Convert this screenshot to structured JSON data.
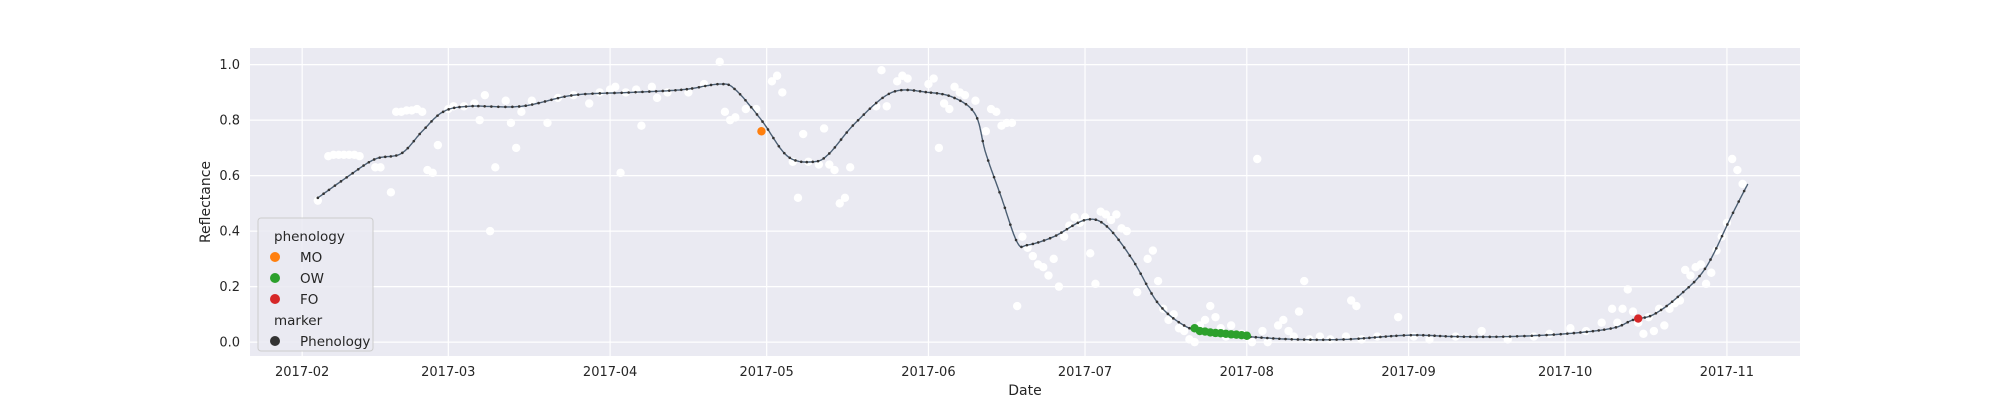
{
  "chart_data": {
    "type": "scatter",
    "title": "",
    "xlabel": "Date",
    "ylabel": "Reflectance",
    "xlim": [
      "2017-01-22",
      "2017-11-15"
    ],
    "ylim": [
      -0.05,
      1.06
    ],
    "grid": true,
    "x_ticks": [
      "2017-02-01",
      "2017-03-01",
      "2017-04-01",
      "2017-05-01",
      "2017-06-01",
      "2017-07-01",
      "2017-08-01",
      "2017-09-01",
      "2017-10-01",
      "2017-11-01"
    ],
    "x_tick_labels": [
      "2017-02",
      "2017-03",
      "2017-04",
      "2017-05",
      "2017-06",
      "2017-07",
      "2017-08",
      "2017-09",
      "2017-10",
      "2017-11"
    ],
    "y_ticks": [
      0.0,
      0.2,
      0.4,
      0.6,
      0.8,
      1.0
    ],
    "y_tick_labels": [
      "0.0",
      "0.2",
      "0.4",
      "0.6",
      "0.8",
      "1.0"
    ],
    "colors": {
      "background": "#eaeaf2",
      "grid": "#ffffff",
      "observations": "#ffffff",
      "curve": "#4c5f73",
      "MO": "#ff7f0e",
      "OW": "#2ca02c",
      "FO": "#d62728",
      "Phenology": "#333333"
    },
    "legend": {
      "position": "lower-left",
      "title_hue": "phenology",
      "hue_entries": [
        "MO",
        "OW",
        "FO"
      ],
      "title_marker": "marker",
      "marker_entries": [
        "Phenology"
      ]
    },
    "observations": [
      [
        "2017-02-04",
        0.51
      ],
      [
        "2017-02-06",
        0.67
      ],
      [
        "2017-02-07",
        0.675
      ],
      [
        "2017-02-08",
        0.675
      ],
      [
        "2017-02-09",
        0.675
      ],
      [
        "2017-02-10",
        0.675
      ],
      [
        "2017-02-11",
        0.675
      ],
      [
        "2017-02-12",
        0.67
      ],
      [
        "2017-02-15",
        0.63
      ],
      [
        "2017-02-16",
        0.63
      ],
      [
        "2017-02-18",
        0.54
      ],
      [
        "2017-02-19",
        0.83
      ],
      [
        "2017-02-20",
        0.83
      ],
      [
        "2017-02-21",
        0.835
      ],
      [
        "2017-02-22",
        0.835
      ],
      [
        "2017-02-23",
        0.84
      ],
      [
        "2017-02-24",
        0.83
      ],
      [
        "2017-02-25",
        0.62
      ],
      [
        "2017-02-26",
        0.61
      ],
      [
        "2017-02-27",
        0.71
      ],
      [
        "2017-03-01",
        0.84
      ],
      [
        "2017-03-02",
        0.85
      ],
      [
        "2017-03-04",
        0.85
      ],
      [
        "2017-03-06",
        0.86
      ],
      [
        "2017-03-07",
        0.8
      ],
      [
        "2017-03-08",
        0.89
      ],
      [
        "2017-03-09",
        0.4
      ],
      [
        "2017-03-10",
        0.63
      ],
      [
        "2017-03-12",
        0.87
      ],
      [
        "2017-03-13",
        0.79
      ],
      [
        "2017-03-14",
        0.7
      ],
      [
        "2017-03-15",
        0.83
      ],
      [
        "2017-03-17",
        0.87
      ],
      [
        "2017-03-20",
        0.79
      ],
      [
        "2017-03-22",
        0.88
      ],
      [
        "2017-03-25",
        0.89
      ],
      [
        "2017-03-28",
        0.86
      ],
      [
        "2017-03-30",
        0.9
      ],
      [
        "2017-04-01",
        0.91
      ],
      [
        "2017-04-02",
        0.92
      ],
      [
        "2017-04-03",
        0.61
      ],
      [
        "2017-04-04",
        0.9
      ],
      [
        "2017-04-06",
        0.91
      ],
      [
        "2017-04-07",
        0.78
      ],
      [
        "2017-04-09",
        0.92
      ],
      [
        "2017-04-10",
        0.88
      ],
      [
        "2017-04-12",
        0.9
      ],
      [
        "2017-04-16",
        0.9
      ],
      [
        "2017-04-19",
        0.93
      ],
      [
        "2017-04-22",
        1.01
      ],
      [
        "2017-04-23",
        0.83
      ],
      [
        "2017-04-24",
        0.8
      ],
      [
        "2017-04-25",
        0.81
      ],
      [
        "2017-04-27",
        0.84
      ],
      [
        "2017-04-29",
        0.84
      ],
      [
        "2017-05-02",
        0.94
      ],
      [
        "2017-05-03",
        0.96
      ],
      [
        "2017-05-04",
        0.9
      ],
      [
        "2017-05-06",
        0.65
      ],
      [
        "2017-05-07",
        0.52
      ],
      [
        "2017-05-08",
        0.75
      ],
      [
        "2017-05-09",
        0.65
      ],
      [
        "2017-05-11",
        0.64
      ],
      [
        "2017-05-12",
        0.77
      ],
      [
        "2017-05-13",
        0.64
      ],
      [
        "2017-05-14",
        0.62
      ],
      [
        "2017-05-15",
        0.5
      ],
      [
        "2017-05-16",
        0.52
      ],
      [
        "2017-05-17",
        0.63
      ],
      [
        "2017-05-22",
        0.85
      ],
      [
        "2017-05-23",
        0.98
      ],
      [
        "2017-05-24",
        0.85
      ],
      [
        "2017-05-26",
        0.94
      ],
      [
        "2017-05-27",
        0.96
      ],
      [
        "2017-05-28",
        0.95
      ],
      [
        "2017-06-01",
        0.93
      ],
      [
        "2017-06-02",
        0.95
      ],
      [
        "2017-06-03",
        0.7
      ],
      [
        "2017-06-04",
        0.86
      ],
      [
        "2017-06-05",
        0.84
      ],
      [
        "2017-06-06",
        0.92
      ],
      [
        "2017-06-07",
        0.9
      ],
      [
        "2017-06-08",
        0.89
      ],
      [
        "2017-06-10",
        0.87
      ],
      [
        "2017-06-12",
        0.76
      ],
      [
        "2017-06-13",
        0.84
      ],
      [
        "2017-06-14",
        0.83
      ],
      [
        "2017-06-15",
        0.78
      ],
      [
        "2017-06-16",
        0.79
      ],
      [
        "2017-06-17",
        0.79
      ],
      [
        "2017-06-18",
        0.13
      ],
      [
        "2017-06-19",
        0.38
      ],
      [
        "2017-06-20",
        0.34
      ],
      [
        "2017-06-21",
        0.31
      ],
      [
        "2017-06-22",
        0.28
      ],
      [
        "2017-06-23",
        0.27
      ],
      [
        "2017-06-24",
        0.24
      ],
      [
        "2017-06-25",
        0.3
      ],
      [
        "2017-06-26",
        0.2
      ],
      [
        "2017-06-27",
        0.38
      ],
      [
        "2017-06-28",
        0.42
      ],
      [
        "2017-06-29",
        0.45
      ],
      [
        "2017-06-30",
        0.43
      ],
      [
        "2017-07-01",
        0.45
      ],
      [
        "2017-07-02",
        0.32
      ],
      [
        "2017-07-03",
        0.21
      ],
      [
        "2017-07-04",
        0.47
      ],
      [
        "2017-07-05",
        0.46
      ],
      [
        "2017-07-06",
        0.44
      ],
      [
        "2017-07-07",
        0.46
      ],
      [
        "2017-07-08",
        0.41
      ],
      [
        "2017-07-09",
        0.4
      ],
      [
        "2017-07-11",
        0.18
      ],
      [
        "2017-07-13",
        0.3
      ],
      [
        "2017-07-14",
        0.33
      ],
      [
        "2017-07-15",
        0.22
      ],
      [
        "2017-07-16",
        0.12
      ],
      [
        "2017-07-17",
        0.08
      ],
      [
        "2017-07-18",
        0.1
      ],
      [
        "2017-07-19",
        0.05
      ],
      [
        "2017-07-20",
        0.04
      ],
      [
        "2017-07-21",
        0.01
      ],
      [
        "2017-07-22",
        0.0
      ],
      [
        "2017-07-23",
        0.06
      ],
      [
        "2017-07-24",
        0.08
      ],
      [
        "2017-07-25",
        0.13
      ],
      [
        "2017-07-26",
        0.09
      ],
      [
        "2017-07-27",
        0.05
      ],
      [
        "2017-07-28",
        0.02
      ],
      [
        "2017-07-29",
        0.06
      ],
      [
        "2017-07-31",
        0.03
      ],
      [
        "2017-08-01",
        0.02
      ],
      [
        "2017-08-02",
        0.0
      ],
      [
        "2017-08-03",
        0.66
      ],
      [
        "2017-08-04",
        0.04
      ],
      [
        "2017-08-05",
        0.0
      ],
      [
        "2017-08-07",
        0.06
      ],
      [
        "2017-08-08",
        0.08
      ],
      [
        "2017-08-09",
        0.04
      ],
      [
        "2017-08-10",
        0.02
      ],
      [
        "2017-08-11",
        0.11
      ],
      [
        "2017-08-12",
        0.22
      ],
      [
        "2017-08-13",
        0.01
      ],
      [
        "2017-08-15",
        0.02
      ],
      [
        "2017-08-17",
        0.01
      ],
      [
        "2017-08-20",
        0.02
      ],
      [
        "2017-08-21",
        0.15
      ],
      [
        "2017-08-22",
        0.13
      ],
      [
        "2017-08-23",
        0.01
      ],
      [
        "2017-08-26",
        0.02
      ],
      [
        "2017-08-30",
        0.09
      ],
      [
        "2017-09-02",
        0.02
      ],
      [
        "2017-09-05",
        0.01
      ],
      [
        "2017-09-10",
        0.02
      ],
      [
        "2017-09-15",
        0.04
      ],
      [
        "2017-09-20",
        0.01
      ],
      [
        "2017-09-25",
        0.02
      ],
      [
        "2017-09-28",
        0.03
      ],
      [
        "2017-10-02",
        0.05
      ],
      [
        "2017-10-05",
        0.04
      ],
      [
        "2017-10-08",
        0.07
      ],
      [
        "2017-10-10",
        0.12
      ],
      [
        "2017-10-11",
        0.07
      ],
      [
        "2017-10-12",
        0.12
      ],
      [
        "2017-10-13",
        0.19
      ],
      [
        "2017-10-14",
        0.11
      ],
      [
        "2017-10-15",
        0.07
      ],
      [
        "2017-10-16",
        0.03
      ],
      [
        "2017-10-17",
        0.09
      ],
      [
        "2017-10-18",
        0.04
      ],
      [
        "2017-10-19",
        0.12
      ],
      [
        "2017-10-20",
        0.06
      ],
      [
        "2017-10-21",
        0.12
      ],
      [
        "2017-10-22",
        0.14
      ],
      [
        "2017-10-23",
        0.15
      ],
      [
        "2017-10-24",
        0.26
      ],
      [
        "2017-10-25",
        0.24
      ],
      [
        "2017-10-26",
        0.27
      ],
      [
        "2017-10-27",
        0.28
      ],
      [
        "2017-10-28",
        0.21
      ],
      [
        "2017-10-29",
        0.25
      ],
      [
        "2017-10-30",
        0.33
      ],
      [
        "2017-10-31",
        0.38
      ],
      [
        "2017-11-01",
        0.43
      ],
      [
        "2017-11-02",
        0.66
      ],
      [
        "2017-11-03",
        0.62
      ],
      [
        "2017-11-04",
        0.57
      ]
    ],
    "smoothed_series": {
      "x": [
        "2017-02-04",
        "2017-02-10",
        "2017-02-15",
        "2017-02-20",
        "2017-02-24",
        "2017-02-28",
        "2017-03-05",
        "2017-03-15",
        "2017-03-25",
        "2017-04-05",
        "2017-04-15",
        "2017-04-22",
        "2017-04-25",
        "2017-04-30",
        "2017-05-05",
        "2017-05-10",
        "2017-05-13",
        "2017-05-18",
        "2017-05-25",
        "2017-06-01",
        "2017-06-06",
        "2017-06-10",
        "2017-06-12",
        "2017-06-15",
        "2017-06-18",
        "2017-06-20",
        "2017-06-25",
        "2017-07-01",
        "2017-07-05",
        "2017-07-10",
        "2017-07-15",
        "2017-07-20",
        "2017-07-25",
        "2017-08-01",
        "2017-08-10",
        "2017-08-20",
        "2017-09-01",
        "2017-09-10",
        "2017-09-20",
        "2017-10-01",
        "2017-10-10",
        "2017-10-14",
        "2017-10-18",
        "2017-10-23",
        "2017-10-28",
        "2017-11-02",
        "2017-11-05"
      ],
      "y": [
        0.52,
        0.6,
        0.66,
        0.68,
        0.76,
        0.83,
        0.85,
        0.85,
        0.89,
        0.9,
        0.91,
        0.93,
        0.91,
        0.8,
        0.67,
        0.65,
        0.68,
        0.79,
        0.9,
        0.9,
        0.88,
        0.82,
        0.68,
        0.52,
        0.36,
        0.35,
        0.38,
        0.44,
        0.42,
        0.3,
        0.14,
        0.06,
        0.03,
        0.02,
        0.01,
        0.01,
        0.025,
        0.02,
        0.02,
        0.03,
        0.05,
        0.08,
        0.1,
        0.17,
        0.27,
        0.46,
        0.57
      ]
    },
    "phenology_points": [
      {
        "label": "MO",
        "x": "2017-04-30",
        "y": 0.76
      },
      {
        "label": "OW",
        "x": [
          "2017-07-22",
          "2017-07-23",
          "2017-07-24",
          "2017-07-25",
          "2017-07-26",
          "2017-07-27",
          "2017-07-28",
          "2017-07-29",
          "2017-07-30",
          "2017-07-31",
          "2017-08-01"
        ],
        "y": [
          0.05,
          0.04,
          0.038,
          0.035,
          0.033,
          0.032,
          0.03,
          0.028,
          0.027,
          0.025,
          0.023
        ]
      },
      {
        "label": "FO",
        "x": "2017-10-15",
        "y": 0.085
      }
    ]
  }
}
